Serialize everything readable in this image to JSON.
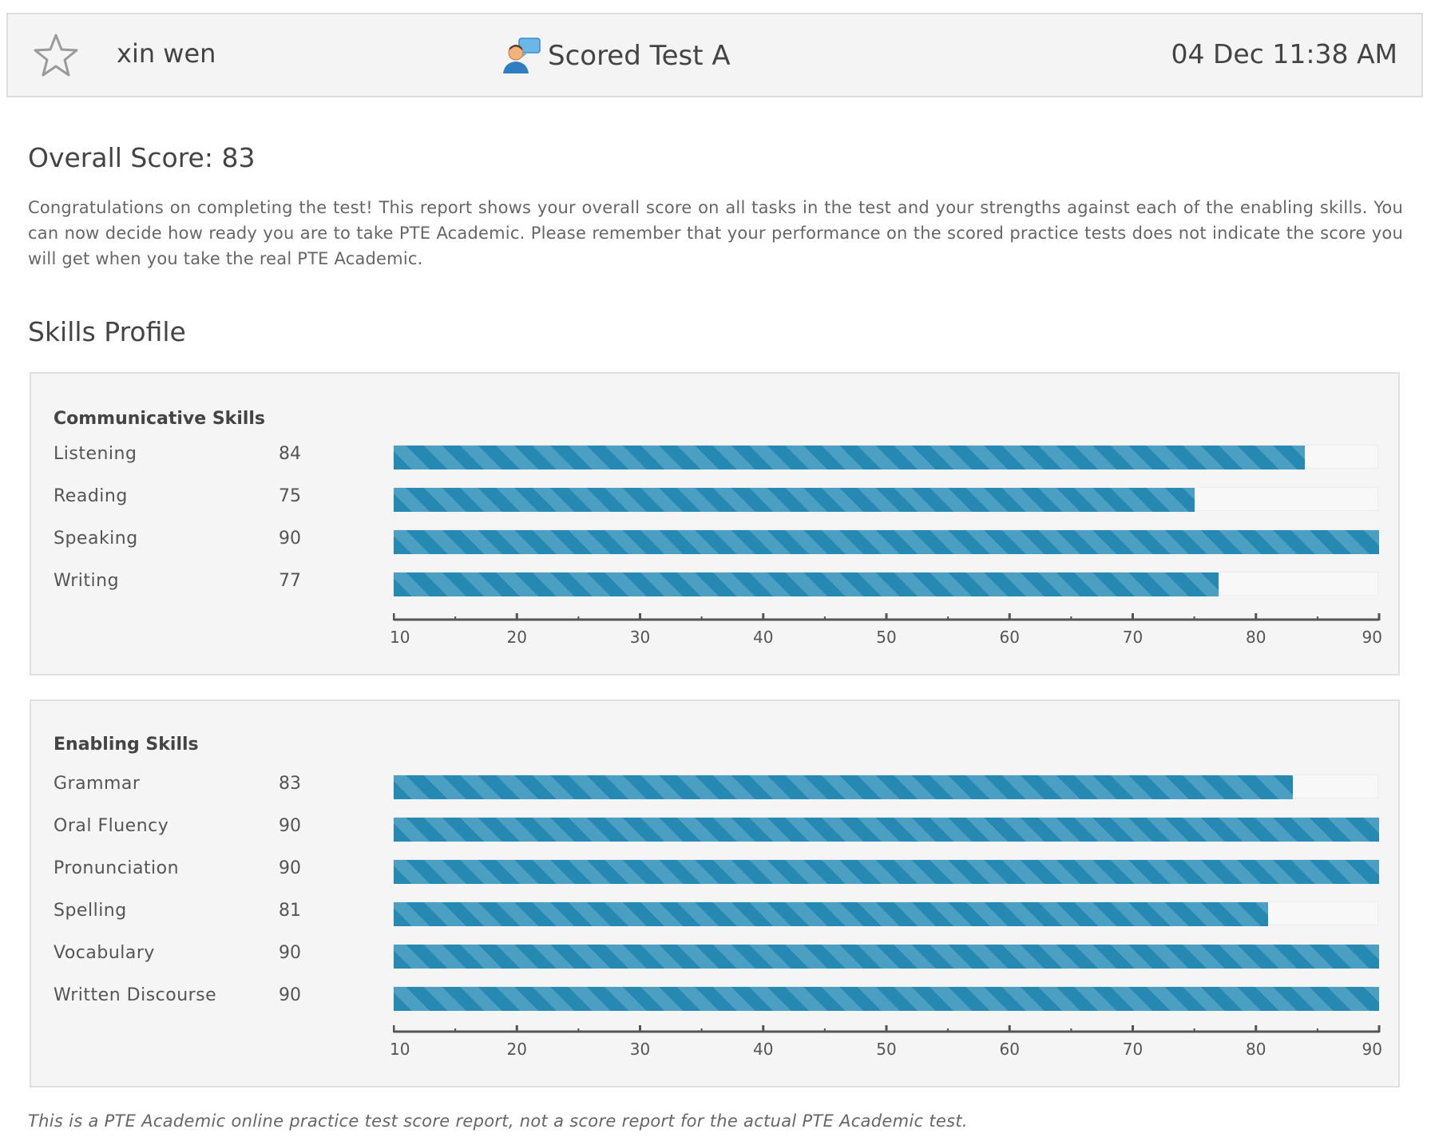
{
  "header": {
    "user_name": "xin wen",
    "test_title": "Scored Test A",
    "datetime": "04 Dec 11:38 AM",
    "star_icon": "star-outline-icon",
    "test_icon": "user-chat-icon"
  },
  "overall": {
    "label": "Overall Score: 83",
    "score": 83
  },
  "intro_text": "Congratulations on completing the test! This report shows your overall score on all tasks in the test and your strengths against each of the enabling skills. You can now decide how ready you are to take PTE Academic. Please remember that your performance on the scored practice tests does not indicate the score you will get when you take the real PTE Academic.",
  "skills_title": "Skills Profile",
  "colors": {
    "bar": "#2689b1",
    "bar_stripe": "#4b9fc2",
    "panel": "#f5f5f5"
  },
  "chart_data": [
    {
      "type": "bar",
      "title": "Communicative Skills",
      "categories": [
        "Listening",
        "Reading",
        "Speaking",
        "Writing"
      ],
      "values": [
        84,
        75,
        90,
        77
      ],
      "xlim": [
        10,
        90
      ],
      "ticks": [
        "10",
        "20",
        "30",
        "40",
        "50",
        "60",
        "70",
        "80",
        "90"
      ]
    },
    {
      "type": "bar",
      "title": "Enabling Skills",
      "categories": [
        "Grammar",
        "Oral Fluency",
        "Pronunciation",
        "Spelling",
        "Vocabulary",
        "Written Discourse"
      ],
      "values": [
        83,
        90,
        90,
        81,
        90,
        90
      ],
      "xlim": [
        10,
        90
      ],
      "ticks": [
        "10",
        "20",
        "30",
        "40",
        "50",
        "60",
        "70",
        "80",
        "90"
      ]
    }
  ],
  "footnote": "This is a PTE Academic online practice test score report, not a score report for the actual PTE Academic test."
}
